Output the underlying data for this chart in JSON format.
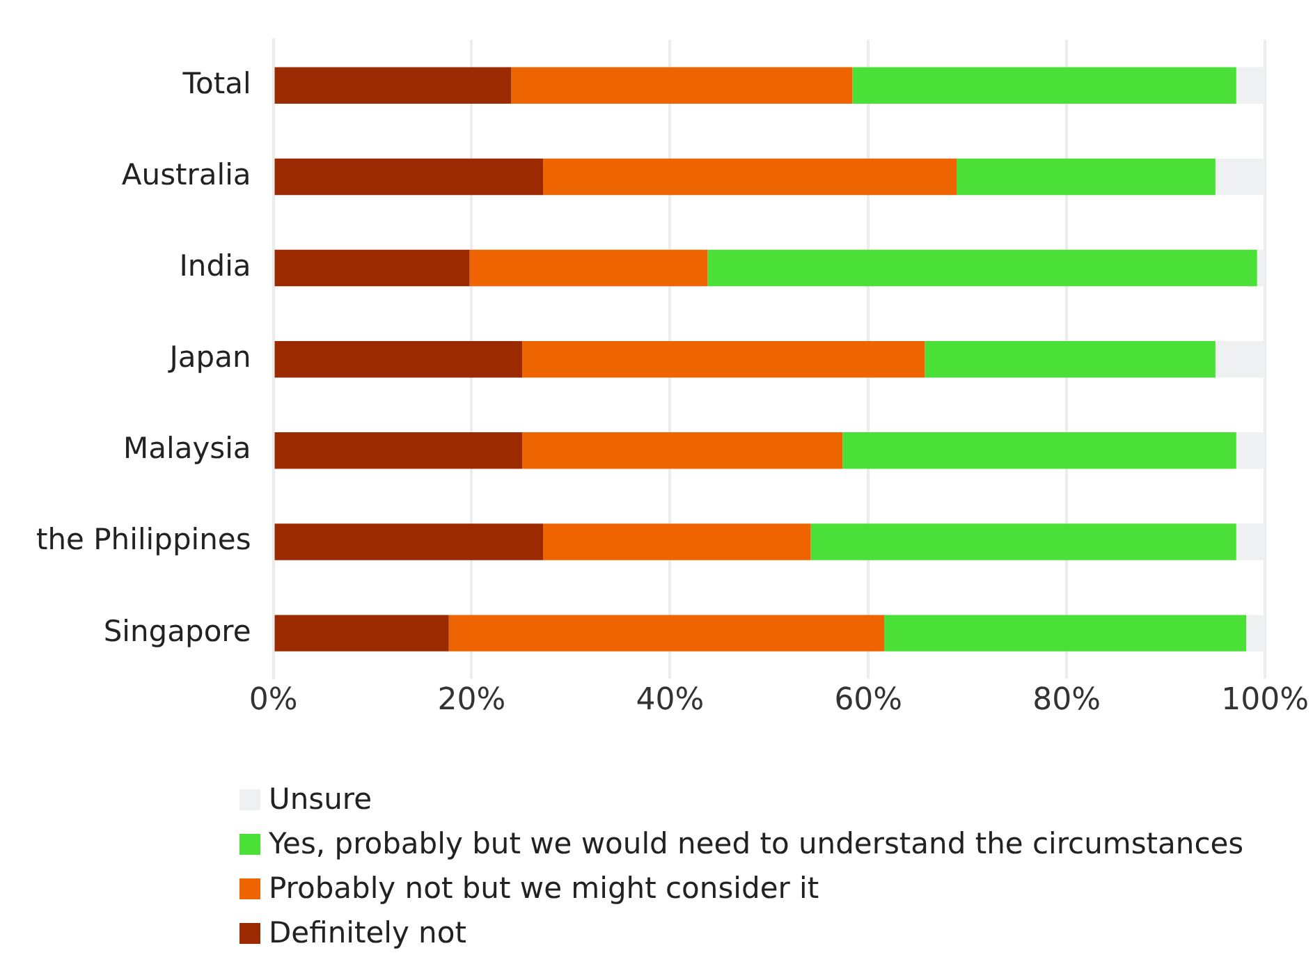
{
  "chart_data": {
    "type": "bar",
    "orientation": "horizontal",
    "stacked": true,
    "categories": [
      "Total",
      "Australia",
      "India",
      "Japan",
      "Malaysia",
      "the Philippines",
      "Singapore"
    ],
    "series": [
      {
        "name": "Definitely not",
        "color": "#9c2a00",
        "values": [
          24.0,
          27.2,
          19.8,
          25.1,
          25.1,
          27.2,
          17.7
        ]
      },
      {
        "name": "Probably not but we might consider it",
        "color": "#ee6400",
        "values": [
          34.4,
          41.7,
          24.0,
          40.6,
          32.3,
          27.0,
          43.9
        ]
      },
      {
        "name": "Yes, probably but we would need to understand the circumstances",
        "color": "#4be038",
        "values": [
          38.7,
          26.1,
          55.4,
          29.3,
          39.7,
          42.9,
          36.5
        ]
      },
      {
        "name": "Unsure",
        "color": "#eff0f2",
        "values": [
          2.9,
          5.0,
          0.8,
          5.0,
          2.9,
          2.9,
          1.9
        ]
      }
    ],
    "xlim": [
      0,
      100
    ],
    "xticks": [
      {
        "value": 0,
        "label": "0%"
      },
      {
        "value": 20,
        "label": "20%"
      },
      {
        "value": 40,
        "label": "40%"
      },
      {
        "value": 60,
        "label": "60%"
      },
      {
        "value": 80,
        "label": "80%"
      },
      {
        "value": 100,
        "label": "100%"
      }
    ],
    "grid": "x",
    "legend": "bottom"
  }
}
